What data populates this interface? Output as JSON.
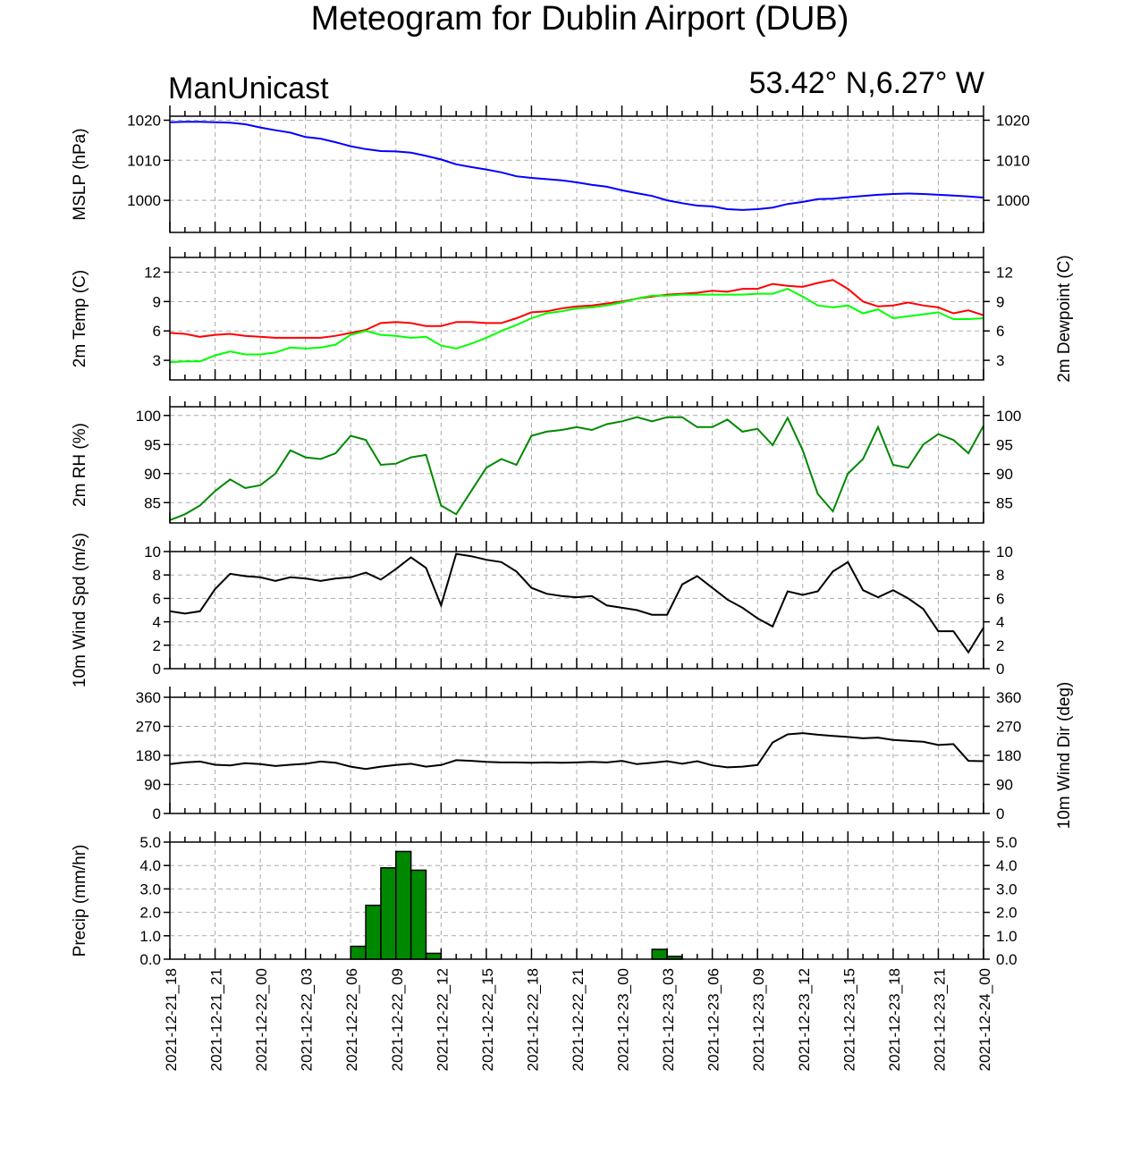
{
  "title": "Meteogram for Dublin Airport (DUB)",
  "model": "ManUnicast",
  "location": "53.42° N,6.27° W",
  "x_ticks": [
    "2021-12-21_18",
    "2021-12-21_21",
    "2021-12-22_00",
    "2021-12-22_03",
    "2021-12-22_06",
    "2021-12-22_09",
    "2021-12-22_12",
    "2021-12-22_15",
    "2021-12-22_18",
    "2021-12-22_21",
    "2021-12-23_00",
    "2021-12-23_03",
    "2021-12-23_06",
    "2021-12-23_09",
    "2021-12-23_12",
    "2021-12-23_15",
    "2021-12-23_18",
    "2021-12-23_21",
    "2021-12-24_00"
  ],
  "chart_data": [
    {
      "type": "line",
      "ylabel": "MSLP (hPa)",
      "ylim": [
        992,
        1021
      ],
      "yticks": [
        1000,
        1010,
        1020
      ],
      "grid": true,
      "x_unit": "hours since 2021-12-21_18",
      "x": [
        0,
        1,
        2,
        3,
        4,
        5,
        6,
        7,
        8,
        9,
        10,
        11,
        12,
        13,
        14,
        15,
        16,
        17,
        18,
        19,
        20,
        21,
        22,
        23,
        24,
        25,
        26,
        27,
        28,
        29,
        30,
        31,
        32,
        33,
        34,
        35,
        36,
        37,
        38,
        39,
        40,
        41,
        42,
        43,
        44,
        45,
        46,
        47,
        48,
        49,
        50,
        51,
        52,
        53,
        54
      ],
      "series": [
        {
          "name": "MSLP",
          "color": "#0000ff",
          "values": [
            1019.5,
            1019.6,
            1019.6,
            1019.5,
            1019.4,
            1019.0,
            1018.2,
            1017.5,
            1016.9,
            1015.8,
            1015.4,
            1014.5,
            1013.5,
            1012.8,
            1012.3,
            1012.2,
            1011.9,
            1011.1,
            1010.2,
            1009.0,
            1008.3,
            1007.7,
            1007.0,
            1006.0,
            1005.6,
            1005.3,
            1005.0,
            1004.5,
            1003.9,
            1003.4,
            1002.5,
            1001.8,
            1001.1,
            1000.0,
            999.3,
            998.7,
            998.5,
            997.8,
            997.6,
            997.8,
            998.2,
            999.1,
            999.6,
            1000.3,
            1000.4,
            1000.8,
            1001.1,
            1001.4,
            1001.6,
            1001.7,
            1001.6,
            1001.4,
            1001.2,
            1001.0,
            1000.7
          ]
        }
      ]
    },
    {
      "type": "line",
      "ylabel": "2m Temp (C)",
      "ylabel_right": "2m Dewpoint (C)",
      "ylim": [
        1,
        13.5
      ],
      "yticks": [
        3,
        6,
        9,
        12
      ],
      "grid": true,
      "x_unit": "hours since 2021-12-21_18",
      "x": [
        0,
        1,
        2,
        3,
        4,
        5,
        6,
        7,
        8,
        9,
        10,
        11,
        12,
        13,
        14,
        15,
        16,
        17,
        18,
        19,
        20,
        21,
        22,
        23,
        24,
        25,
        26,
        27,
        28,
        29,
        30,
        31,
        32,
        33,
        34,
        35,
        36,
        37,
        38,
        39,
        40,
        41,
        42,
        43,
        44,
        45,
        46,
        47,
        48,
        49,
        50,
        51,
        52,
        53,
        54
      ],
      "series": [
        {
          "name": "Temperature",
          "color": "#ff0000",
          "values": [
            5.8,
            5.7,
            5.4,
            5.6,
            5.7,
            5.5,
            5.4,
            5.3,
            5.3,
            5.3,
            5.3,
            5.5,
            5.8,
            6.1,
            6.8,
            6.9,
            6.8,
            6.5,
            6.5,
            6.9,
            6.9,
            6.8,
            6.8,
            7.3,
            7.9,
            8.0,
            8.3,
            8.5,
            8.6,
            8.8,
            9.0,
            9.3,
            9.5,
            9.7,
            9.8,
            9.9,
            10.1,
            10.0,
            10.3,
            10.3,
            10.8,
            10.6,
            10.5,
            10.9,
            11.2,
            10.3,
            9.0,
            8.5,
            8.6,
            8.9,
            8.6,
            8.4,
            7.8,
            8.1,
            7.6
          ]
        },
        {
          "name": "Dewpoint",
          "color": "#00ff00",
          "values": [
            2.8,
            2.9,
            2.9,
            3.5,
            3.9,
            3.6,
            3.6,
            3.8,
            4.3,
            4.2,
            4.3,
            4.6,
            5.6,
            6.0,
            5.6,
            5.5,
            5.3,
            5.4,
            4.5,
            4.2,
            4.7,
            5.3,
            6.0,
            6.6,
            7.3,
            7.8,
            8.0,
            8.3,
            8.4,
            8.6,
            8.9,
            9.3,
            9.6,
            9.6,
            9.7,
            9.7,
            9.7,
            9.7,
            9.7,
            9.8,
            9.8,
            10.3,
            9.5,
            8.6,
            8.4,
            8.6,
            7.8,
            8.2,
            7.3,
            7.5,
            7.7,
            7.9,
            7.2,
            7.2,
            7.3
          ]
        }
      ]
    },
    {
      "type": "line",
      "ylabel": "2m RH (%)",
      "ylim": [
        81.5,
        101.5
      ],
      "yticks": [
        85,
        90,
        95,
        100
      ],
      "grid": true,
      "x_unit": "hours since 2021-12-21_18",
      "x": [
        0,
        1,
        2,
        3,
        4,
        5,
        6,
        7,
        8,
        9,
        10,
        11,
        12,
        13,
        14,
        15,
        16,
        17,
        18,
        19,
        20,
        21,
        22,
        23,
        24,
        25,
        26,
        27,
        28,
        29,
        30,
        31,
        32,
        33,
        34,
        35,
        36,
        37,
        38,
        39,
        40,
        41,
        42,
        43,
        44,
        45,
        46,
        47,
        48,
        49,
        50,
        51,
        52,
        53,
        54
      ],
      "series": [
        {
          "name": "RH",
          "color": "#008800",
          "values": [
            82.0,
            83.0,
            84.5,
            87.0,
            89.0,
            87.5,
            88.0,
            90.0,
            94.0,
            92.8,
            92.5,
            93.5,
            96.5,
            95.8,
            91.5,
            91.7,
            92.8,
            93.2,
            84.5,
            83.0,
            87.0,
            91.0,
            92.5,
            91.5,
            96.5,
            97.2,
            97.5,
            98.0,
            97.5,
            98.5,
            99.0,
            99.7,
            99.0,
            99.7,
            99.7,
            98.0,
            98.0,
            99.3,
            97.2,
            97.7,
            94.9,
            99.6,
            94.0,
            86.5,
            83.5,
            90.0,
            92.5,
            98.0,
            91.5,
            91.0,
            95.0,
            96.8,
            95.8,
            93.5,
            98.2
          ]
        }
      ]
    },
    {
      "type": "line",
      "ylabel": "10m Wind Spd (m/s)",
      "ylim": [
        0,
        10
      ],
      "yticks": [
        0,
        2,
        4,
        6,
        8,
        10
      ],
      "grid": true,
      "x_unit": "hours since 2021-12-21_18",
      "x": [
        0,
        1,
        2,
        3,
        4,
        5,
        6,
        7,
        8,
        9,
        10,
        11,
        12,
        13,
        14,
        15,
        16,
        17,
        18,
        19,
        20,
        21,
        22,
        23,
        24,
        25,
        26,
        27,
        28,
        29,
        30,
        31,
        32,
        33,
        34,
        35,
        36,
        37,
        38,
        39,
        40,
        41,
        42,
        43,
        44,
        45,
        46,
        47,
        48,
        49,
        50,
        51,
        52,
        53,
        54
      ],
      "series": [
        {
          "name": "Wind Speed",
          "color": "#000000",
          "values": [
            4.9,
            4.7,
            4.9,
            6.8,
            8.1,
            7.9,
            7.8,
            7.5,
            7.8,
            7.7,
            7.5,
            7.7,
            7.8,
            8.2,
            7.6,
            8.5,
            9.5,
            8.6,
            5.4,
            9.8,
            9.6,
            9.3,
            9.1,
            8.3,
            6.9,
            6.4,
            6.2,
            6.1,
            6.2,
            5.4,
            5.2,
            5.0,
            4.6,
            4.6,
            7.2,
            7.9,
            6.9,
            5.9,
            5.2,
            4.3,
            3.6,
            6.6,
            6.3,
            6.6,
            8.3,
            9.1,
            6.7,
            6.1,
            6.7,
            6.0,
            5.1,
            3.2,
            3.2,
            1.4,
            3.5
          ]
        }
      ]
    },
    {
      "type": "line",
      "ylabel": "",
      "ylabel_right": "10m Wind Dir (deg)",
      "ylim": [
        0,
        360
      ],
      "yticks": [
        0,
        90,
        180,
        270,
        360
      ],
      "grid": true,
      "x_unit": "hours since 2021-12-21_18",
      "x": [
        0,
        1,
        2,
        3,
        4,
        5,
        6,
        7,
        8,
        9,
        10,
        11,
        12,
        13,
        14,
        15,
        16,
        17,
        18,
        19,
        20,
        21,
        22,
        23,
        24,
        25,
        26,
        27,
        28,
        29,
        30,
        31,
        32,
        33,
        34,
        35,
        36,
        37,
        38,
        39,
        40,
        41,
        42,
        43,
        44,
        45,
        46,
        47,
        48,
        49,
        50,
        51,
        52,
        53,
        54
      ],
      "series": [
        {
          "name": "Wind Direction",
          "color": "#000000",
          "values": [
            153,
            158,
            161,
            151,
            149,
            156,
            153,
            147,
            151,
            154,
            161,
            157,
            145,
            138,
            145,
            150,
            154,
            145,
            150,
            165,
            163,
            160,
            158,
            158,
            157,
            158,
            157,
            158,
            160,
            158,
            163,
            153,
            157,
            162,
            154,
            162,
            149,
            143,
            145,
            150,
            220,
            245,
            249,
            244,
            240,
            237,
            233,
            235,
            228,
            225,
            222,
            212,
            215,
            163,
            162
          ]
        }
      ]
    },
    {
      "type": "bar",
      "ylabel": "Precip (mm/hr)",
      "ylim": [
        0,
        5
      ],
      "yticks": [
        0,
        1,
        2,
        3,
        4,
        5
      ],
      "ytick_labels": [
        "0.0",
        "1.0",
        "2.0",
        "3.0",
        "4.0",
        "5.0"
      ],
      "grid": true,
      "color": "#008800",
      "x_unit": "hours since 2021-12-21_18",
      "bars": [
        {
          "x": 12,
          "value": 0.55
        },
        {
          "x": 13,
          "value": 2.3
        },
        {
          "x": 14,
          "value": 3.9
        },
        {
          "x": 15,
          "value": 4.6
        },
        {
          "x": 16,
          "value": 3.8
        },
        {
          "x": 17,
          "value": 0.25
        },
        {
          "x": 32,
          "value": 0.42
        },
        {
          "x": 33,
          "value": 0.12
        }
      ]
    }
  ]
}
